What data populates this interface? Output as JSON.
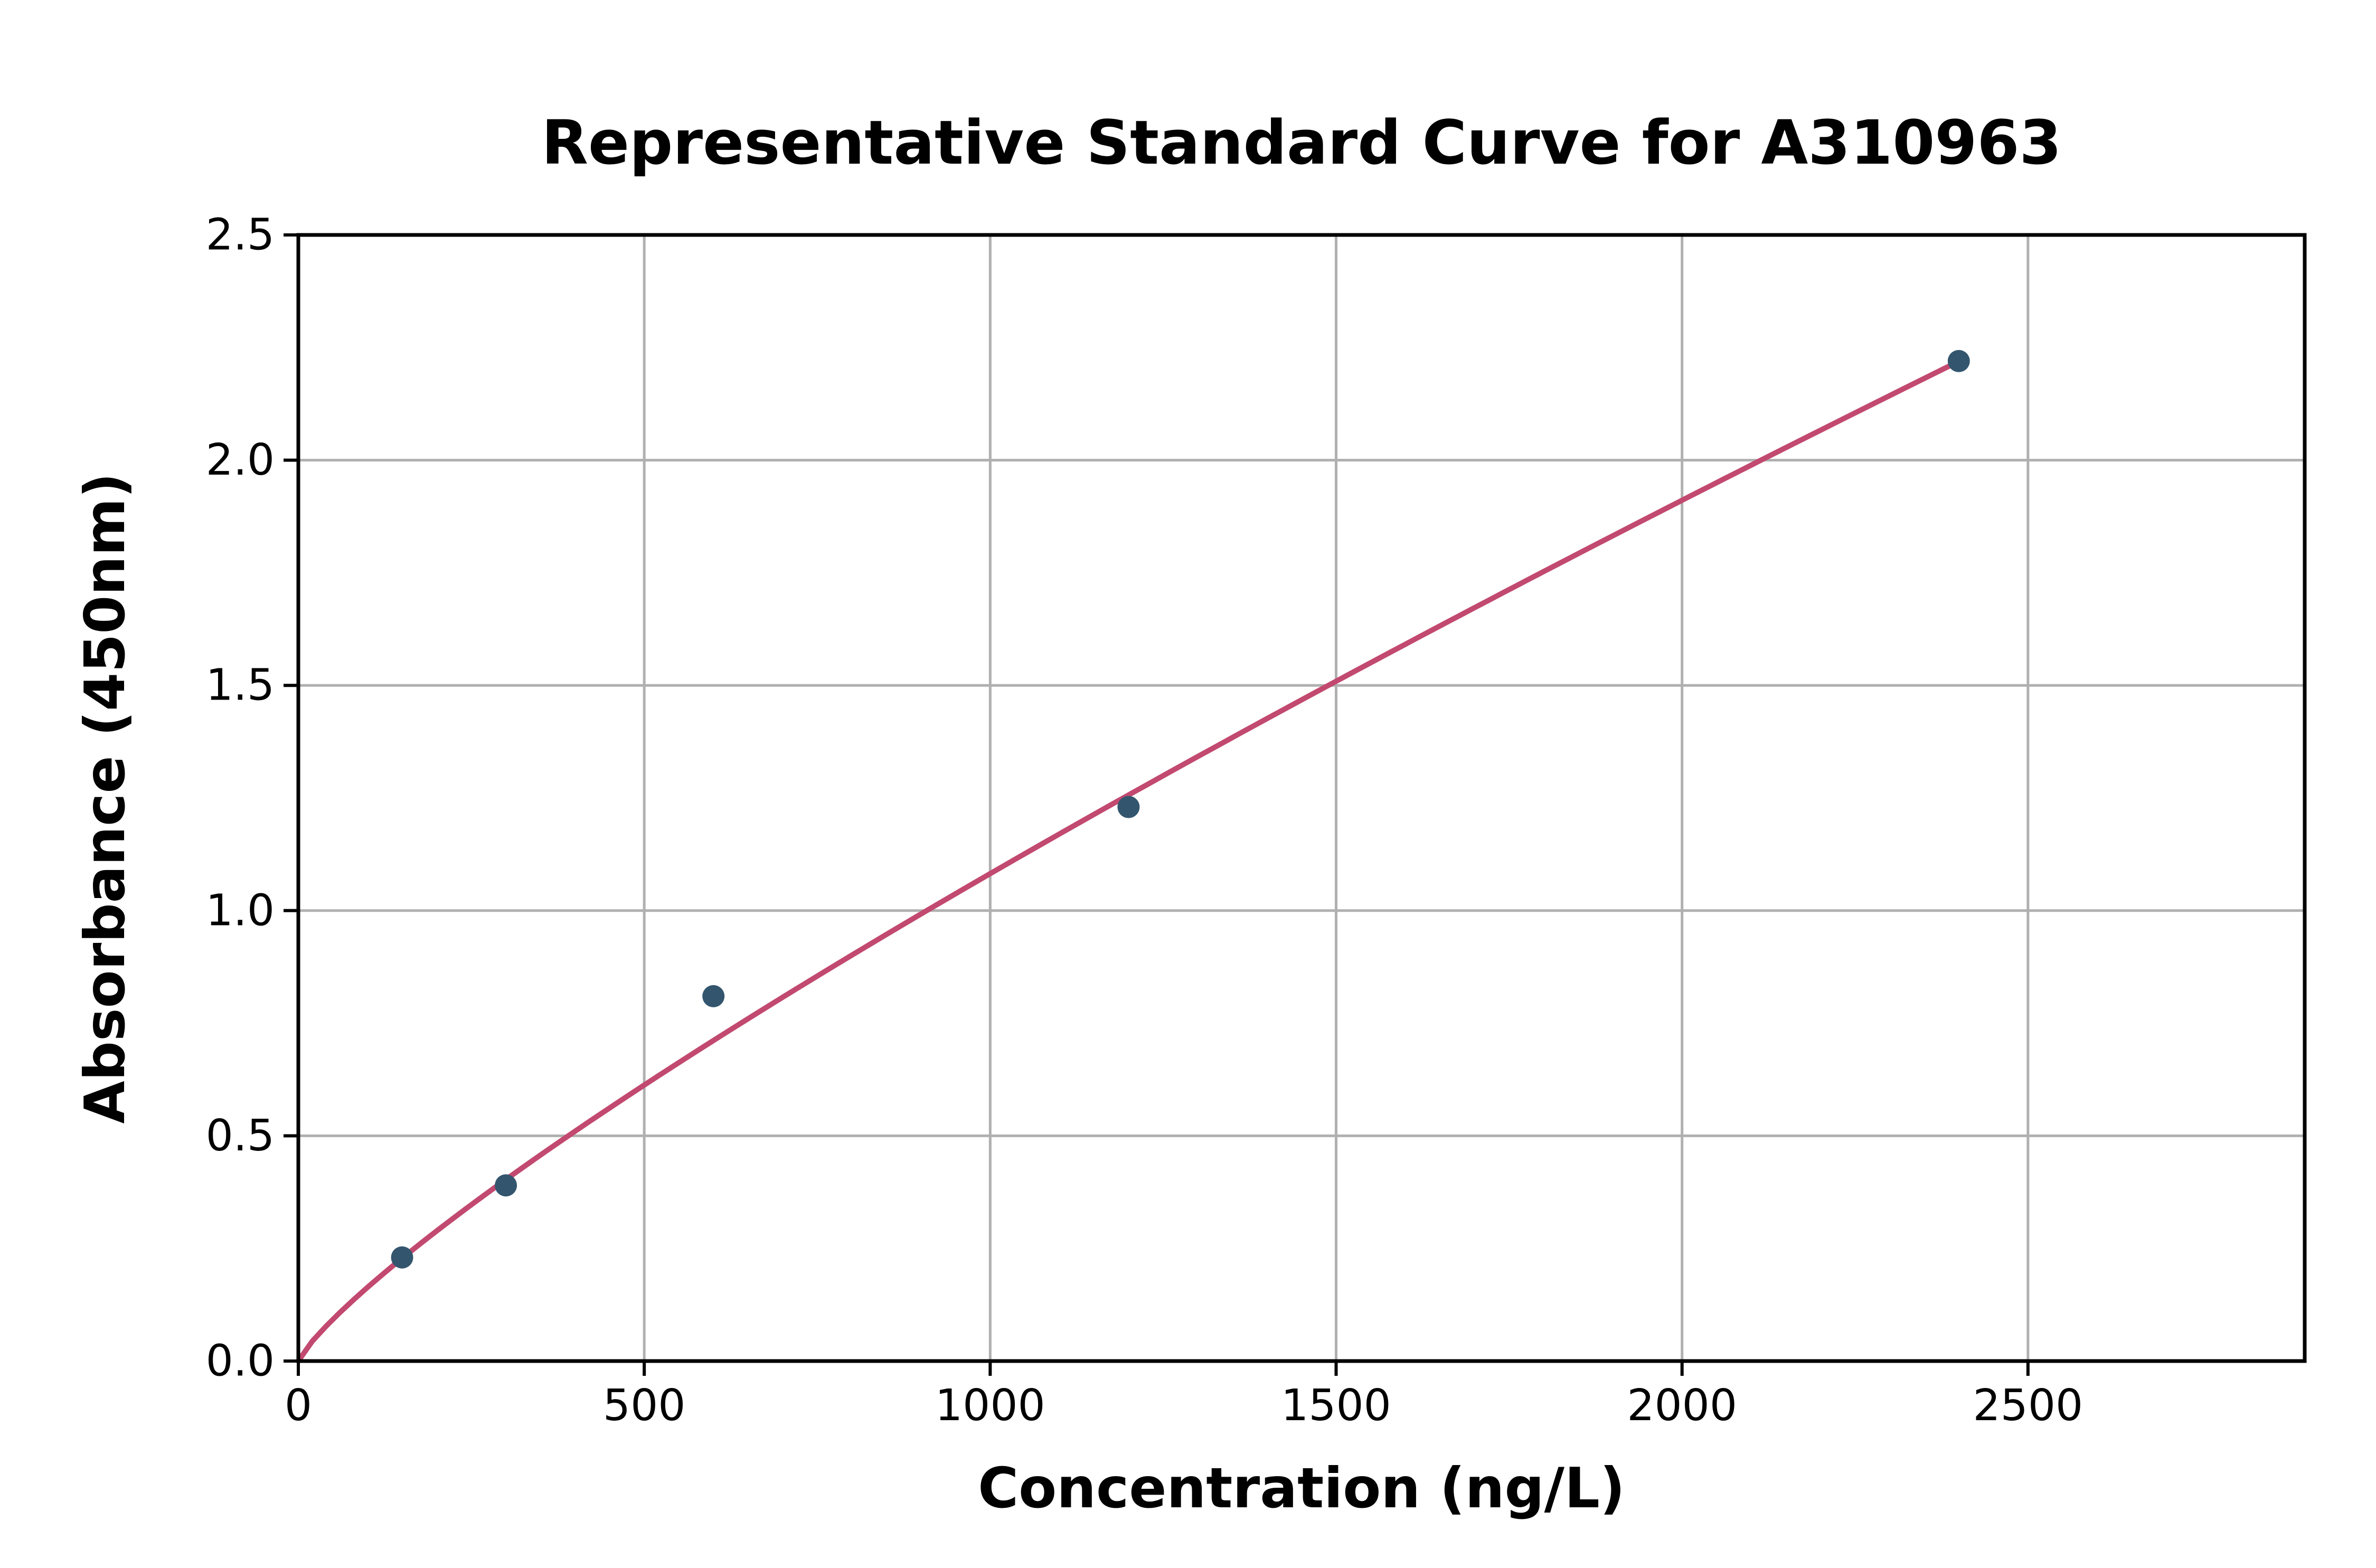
{
  "chart_data": {
    "type": "scatter",
    "title": "Representative Standard Curve for A310963",
    "xlabel": "Concentration (ng/L)",
    "ylabel": "Absorbance (450nm)",
    "xlim": [
      0,
      2900
    ],
    "ylim": [
      0,
      2.5
    ],
    "x_ticks": [
      0,
      500,
      1000,
      1500,
      2000,
      2500
    ],
    "x_tick_labels": [
      "0",
      "500",
      "1000",
      "1500",
      "2000",
      "2500"
    ],
    "y_ticks": [
      0,
      0.5,
      1.0,
      1.5,
      2.0,
      2.5
    ],
    "y_tick_labels": [
      "0.0",
      "0.5",
      "1.0",
      "1.5",
      "2.0",
      "2.5"
    ],
    "grid": true,
    "grid_color": "#b0b0b0",
    "points": [
      {
        "x": 150,
        "y": 0.23
      },
      {
        "x": 300,
        "y": 0.39
      },
      {
        "x": 600,
        "y": 0.81
      },
      {
        "x": 1200,
        "y": 1.23
      },
      {
        "x": 2400,
        "y": 2.22
      }
    ],
    "point_color": "#33566e",
    "curve": {
      "model": "power",
      "a": 0.003739,
      "b": 0.8205,
      "x_start": 0,
      "x_end": 2400
    },
    "curve_color": "#c24970",
    "legend": "none"
  }
}
